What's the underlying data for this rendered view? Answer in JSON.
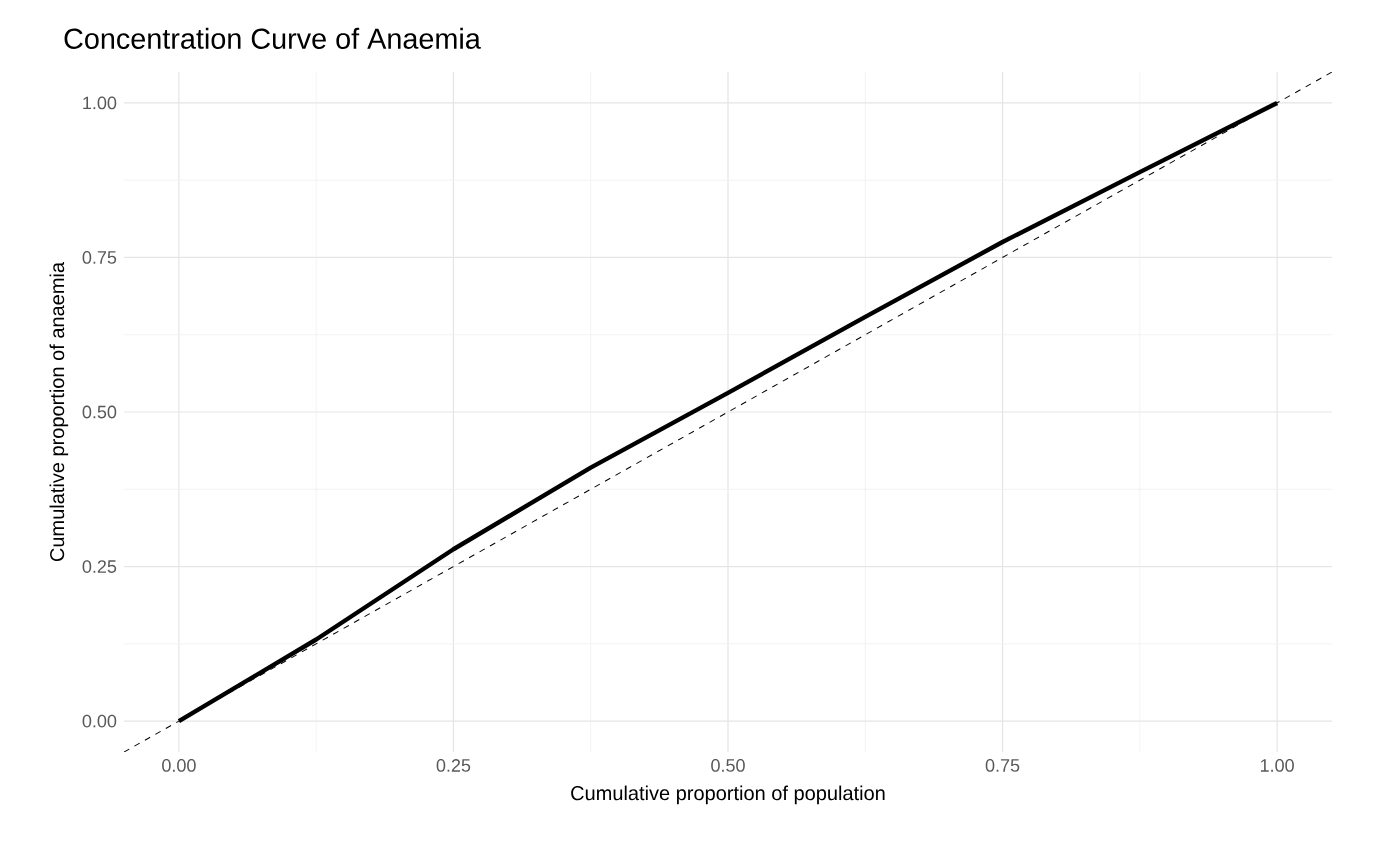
{
  "chart_data": {
    "type": "line",
    "title": "Concentration Curve of Anaemia",
    "xlabel": "Cumulative proportion of population",
    "ylabel": "Cumulative proportion of anaemia",
    "xlim": [
      -0.05,
      1.05
    ],
    "ylim": [
      -0.05,
      1.05
    ],
    "xticks": [
      {
        "value": 0,
        "label": "0.00"
      },
      {
        "value": 0.25,
        "label": "0.25"
      },
      {
        "value": 0.5,
        "label": "0.50"
      },
      {
        "value": 0.75,
        "label": "0.75"
      },
      {
        "value": 1,
        "label": "1.00"
      }
    ],
    "yticks": [
      {
        "value": 0,
        "label": "0.00"
      },
      {
        "value": 0.25,
        "label": "0.25"
      },
      {
        "value": 0.5,
        "label": "0.50"
      },
      {
        "value": 0.75,
        "label": "0.75"
      },
      {
        "value": 1,
        "label": "1.00"
      }
    ],
    "grid": true,
    "series": [
      {
        "color": "#000000",
        "line_style": "solid",
        "x": [
          0,
          0.125,
          0.25,
          0.375,
          0.5,
          0.625,
          0.75,
          0.875,
          1
        ],
        "values": [
          0,
          0.132,
          0.278,
          0.41,
          0.531,
          0.654,
          0.775,
          0.888,
          1
        ]
      },
      {
        "color": "#000000",
        "line_style": "dashed",
        "x": [
          -0.05,
          1.05
        ],
        "values": [
          -0.05,
          1.05
        ]
      }
    ]
  }
}
